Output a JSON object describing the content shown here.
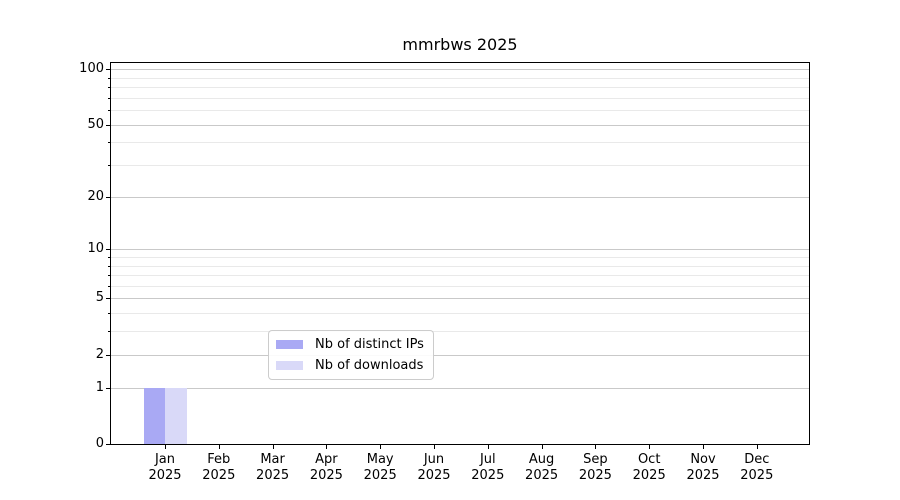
{
  "chart_data": {
    "type": "bar",
    "title": "mmrbws 2025",
    "categories": [
      "Jan",
      "Feb",
      "Mar",
      "Apr",
      "May",
      "Jun",
      "Jul",
      "Aug",
      "Sep",
      "Oct",
      "Nov",
      "Dec"
    ],
    "x_year": "2025",
    "series": [
      {
        "name": "Nb of distinct IPs",
        "color": "#a9a9f4",
        "values": [
          1,
          0,
          0,
          0,
          0,
          0,
          0,
          0,
          0,
          0,
          0,
          0
        ]
      },
      {
        "name": "Nb of downloads",
        "color": "#d9d9f8",
        "values": [
          1,
          0,
          0,
          0,
          0,
          0,
          0,
          0,
          0,
          0,
          0,
          0
        ]
      }
    ],
    "y_scale": "log1p",
    "y_major_ticks": [
      0,
      1,
      2,
      5,
      10,
      20,
      50,
      100
    ],
    "y_minor_gridlines": [
      3,
      4,
      6,
      7,
      8,
      9,
      30,
      40,
      60,
      70,
      80,
      90
    ],
    "ylim": [
      0,
      110
    ],
    "grid": "horizontal",
    "legend_position": "lower-center-inside",
    "colors": {
      "axis": "#000000",
      "grid_major": "#c9c9c9",
      "grid_minor": "#e9e9e9",
      "legend_border": "#cccccc"
    }
  }
}
